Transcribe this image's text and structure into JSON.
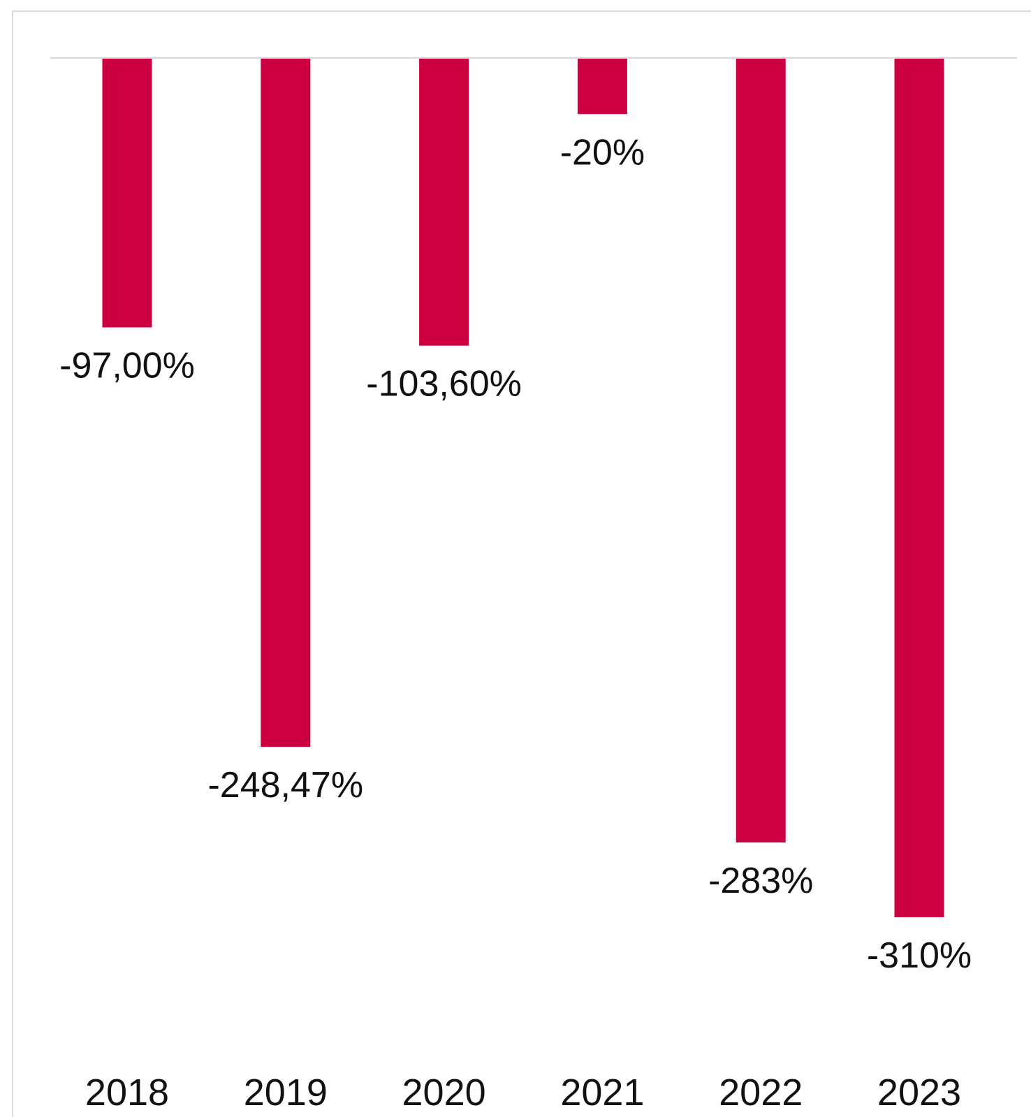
{
  "chart_data": {
    "type": "bar",
    "title": "",
    "xlabel": "",
    "ylabel": "",
    "categories": [
      "2018",
      "2019",
      "2020",
      "2021",
      "2022",
      "2023"
    ],
    "values": [
      -97.0,
      -248.47,
      -103.6,
      -20,
      -283,
      -310
    ],
    "data_labels": [
      "-97,00%",
      "-248,47%",
      "-103,60%",
      "-20%",
      "-283%",
      "-310%"
    ],
    "ylim": [
      -310,
      0
    ],
    "grid": false,
    "legend": "none",
    "colors": {
      "bar": "#cc0040",
      "baseline": "#d9d9d9",
      "frame": "#d9d9d9",
      "text": "#111111"
    }
  }
}
